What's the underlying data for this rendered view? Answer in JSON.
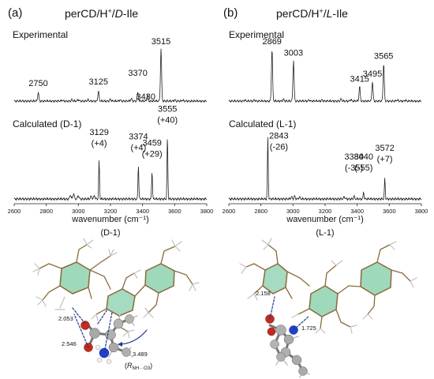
{
  "panels": [
    {
      "letter": "(a)",
      "title_main": "perCD/H",
      "title_sup": "+",
      "title_slash": "/",
      "title_italic": "D",
      "title_end": "-Ile",
      "experimental_label": "Experimental",
      "calculated_label": "Calculated  (D-1)",
      "structure_label": "(D-1)"
    },
    {
      "letter": "(b)",
      "title_main": "perCD/H",
      "title_sup": "+",
      "title_slash": "/",
      "title_italic": "L",
      "title_end": "-Ile",
      "experimental_label": "Experimental",
      "calculated_label": "Calculated  (L-1)",
      "structure_label": "(L-1)"
    }
  ],
  "chart_data": [
    {
      "type": "line",
      "panel": "a",
      "xlabel": "wavenumber (cm⁻¹)",
      "xlim": [
        2600,
        3800
      ],
      "xticks": [
        2600,
        2800,
        3000,
        3200,
        3400,
        3600,
        3800
      ],
      "experimental_peaks": [
        {
          "x": 2750,
          "y": 0.17,
          "label": "2750"
        },
        {
          "x": 3125,
          "y": 0.19,
          "label": "3125"
        },
        {
          "x": 3370,
          "y": 0.16,
          "label": "3370"
        },
        {
          "x": 3430,
          "y": 0.12,
          "label": "3430"
        },
        {
          "x": 3515,
          "y": 1.0,
          "label": "3515"
        }
      ],
      "calculated_peaks": [
        {
          "x": 3129,
          "y": 0.62,
          "label": "3129",
          "shift": "(+4)"
        },
        {
          "x": 3374,
          "y": 0.55,
          "label": "3374",
          "shift": "(+4)"
        },
        {
          "x": 3459,
          "y": 0.45,
          "label": "3459",
          "shift": "(+29)"
        },
        {
          "x": 3555,
          "y": 1.0,
          "label": "3555",
          "shift": "(+40)"
        }
      ]
    },
    {
      "type": "line",
      "panel": "b",
      "xlabel": "wavenumber (cm⁻¹)",
      "xlim": [
        2600,
        3800
      ],
      "xticks": [
        2600,
        2800,
        3000,
        3200,
        3400,
        3600,
        3800
      ],
      "experimental_peaks": [
        {
          "x": 2869,
          "y": 1.0,
          "label": "2869"
        },
        {
          "x": 3003,
          "y": 0.78,
          "label": "3003"
        },
        {
          "x": 3415,
          "y": 0.28,
          "label": "3415"
        },
        {
          "x": 3495,
          "y": 0.38,
          "label": "3495"
        },
        {
          "x": 3565,
          "y": 0.72,
          "label": "3565"
        }
      ],
      "calculated_peaks": [
        {
          "x": 2843,
          "y": 1.0,
          "label": "2843",
          "shift": "(-26)"
        },
        {
          "x": 3380,
          "y": 0.05,
          "label": "3380",
          "shift": "(-35)"
        },
        {
          "x": 3440,
          "y": 0.12,
          "label": "3440",
          "shift": "(-55)"
        },
        {
          "x": 3572,
          "y": 0.33,
          "label": "3572",
          "shift": "(+7)"
        }
      ]
    }
  ],
  "structures": [
    {
      "distances": [
        {
          "value": "2.053"
        },
        {
          "value": "2.546"
        },
        {
          "value": "3.489"
        }
      ],
      "annotation": {
        "open": "(",
        "r": "R",
        "sub": "NH···O3",
        "close": ")"
      }
    },
    {
      "distances": [
        {
          "value": "2.158"
        },
        {
          "value": "1.725"
        }
      ]
    }
  ]
}
